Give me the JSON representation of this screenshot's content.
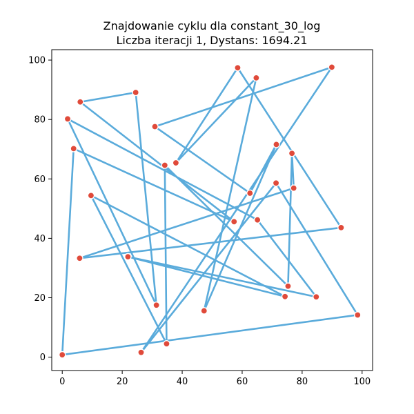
{
  "colors": {
    "route": "#5aabdb",
    "point": "#e04a3a",
    "point_edge": "#ffffff",
    "axis": "#000000"
  },
  "chart_data": {
    "type": "line",
    "title": "Znajdowanie cyklu dla constant_30_log",
    "subtitle": "Liczba iteracji 1, Dystans: 1694.21",
    "xlabel": "",
    "ylabel": "",
    "xlim": [
      -3.5,
      103.5
    ],
    "ylim": [
      -4.5,
      103.5
    ],
    "xticks": [
      0,
      20,
      40,
      60,
      80,
      100
    ],
    "yticks": [
      0,
      20,
      40,
      60,
      80,
      100
    ],
    "grid": false,
    "legend": "none",
    "points": [
      {
        "x": 0.0,
        "y": 0.8
      },
      {
        "x": 1.8,
        "y": 80.2
      },
      {
        "x": 3.8,
        "y": 70.2
      },
      {
        "x": 5.8,
        "y": 33.3
      },
      {
        "x": 6.0,
        "y": 85.9
      },
      {
        "x": 9.6,
        "y": 54.4
      },
      {
        "x": 21.9,
        "y": 33.8
      },
      {
        "x": 24.5,
        "y": 89.1
      },
      {
        "x": 26.3,
        "y": 1.6
      },
      {
        "x": 30.9,
        "y": 77.6
      },
      {
        "x": 31.4,
        "y": 17.5
      },
      {
        "x": 34.2,
        "y": 64.6
      },
      {
        "x": 34.8,
        "y": 4.5
      },
      {
        "x": 37.9,
        "y": 65.4
      },
      {
        "x": 47.3,
        "y": 15.6
      },
      {
        "x": 57.3,
        "y": 45.6
      },
      {
        "x": 58.5,
        "y": 97.4
      },
      {
        "x": 62.6,
        "y": 55.2
      },
      {
        "x": 64.7,
        "y": 94.0
      },
      {
        "x": 65.1,
        "y": 46.2
      },
      {
        "x": 71.3,
        "y": 58.6
      },
      {
        "x": 71.4,
        "y": 71.6
      },
      {
        "x": 74.3,
        "y": 20.4
      },
      {
        "x": 75.3,
        "y": 23.9
      },
      {
        "x": 76.6,
        "y": 68.6
      },
      {
        "x": 77.2,
        "y": 56.9
      },
      {
        "x": 84.7,
        "y": 20.3
      },
      {
        "x": 89.9,
        "y": 97.6
      },
      {
        "x": 93.0,
        "y": 43.6
      },
      {
        "x": 98.5,
        "y": 14.2
      }
    ],
    "route": [
      4,
      7,
      10,
      1,
      19,
      26,
      6,
      22,
      5,
      12,
      11,
      23,
      24,
      25,
      3,
      28,
      16,
      13,
      18,
      14,
      21,
      17,
      9,
      27,
      8,
      20,
      29,
      0,
      2,
      15
    ]
  }
}
